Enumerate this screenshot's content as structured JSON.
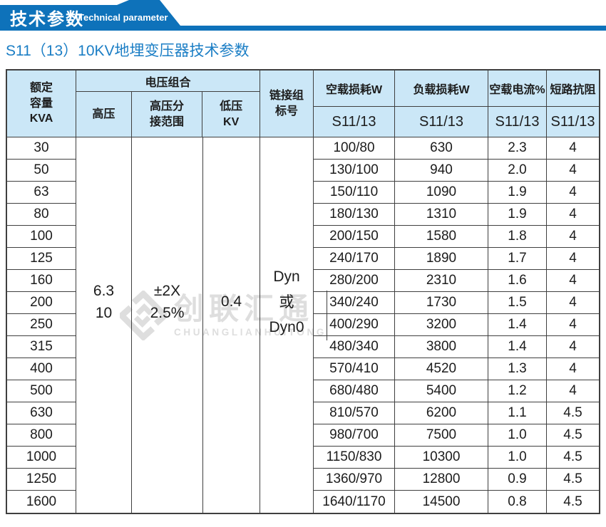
{
  "banner": {
    "title": "技术参数",
    "subtitle": "Technical parameter",
    "ribbon_color": "#0e72ba"
  },
  "page_title": "S11（13）10KV地埋变压器技术参数",
  "page_title_color": "#1b7ec5",
  "watermark": {
    "cn": "创联汇通",
    "en": "CHUANGLIANHUITONG",
    "color": "#dedede"
  },
  "table": {
    "header_bg_color": "#cbe7f7",
    "border_color": "#3f3f3f",
    "header": {
      "rated_capacity": "额定\n容量\nKVA",
      "voltage_combination": "电压组合",
      "hv": "高压",
      "hv_tap_range": "高压分\n接范围",
      "lv": "低压\nKV",
      "link_group": "链接组\n标号",
      "no_load_loss": "空载损耗W",
      "load_loss": "负载损耗W",
      "no_load_current": "空载电流%",
      "short_circuit_impedance": "短路抗阻",
      "model": "S11/13"
    },
    "merged": {
      "hv": "6.3\n10",
      "hv_tap": "±2X\n2.5%",
      "lv": "0.4",
      "link_group": "Dyn\n或\nDyn0"
    },
    "rows": [
      {
        "kva": "30",
        "no_load_loss": "100/80",
        "load_loss": "630",
        "current": "2.3",
        "impedance": "4"
      },
      {
        "kva": "50",
        "no_load_loss": "130/100",
        "load_loss": "940",
        "current": "2.0",
        "impedance": "4"
      },
      {
        "kva": "63",
        "no_load_loss": "150/110",
        "load_loss": "1090",
        "current": "1.9",
        "impedance": "4"
      },
      {
        "kva": "80",
        "no_load_loss": "180/130",
        "load_loss": "1310",
        "current": "1.9",
        "impedance": "4"
      },
      {
        "kva": "100",
        "no_load_loss": "200/150",
        "load_loss": "1580",
        "current": "1.8",
        "impedance": "4"
      },
      {
        "kva": "125",
        "no_load_loss": "240/170",
        "load_loss": "1890",
        "current": "1.7",
        "impedance": "4"
      },
      {
        "kva": "160",
        "no_load_loss": "280/200",
        "load_loss": "2310",
        "current": "1.6",
        "impedance": "4"
      },
      {
        "kva": "200",
        "no_load_loss": "340/240",
        "load_loss": "1730",
        "current": "1.5",
        "impedance": "4"
      },
      {
        "kva": "250",
        "no_load_loss": "400/290",
        "load_loss": "3200",
        "current": "1.4",
        "impedance": "4"
      },
      {
        "kva": "315",
        "no_load_loss": "480/340",
        "load_loss": "3800",
        "current": "1.4",
        "impedance": "4"
      },
      {
        "kva": "400",
        "no_load_loss": "570/410",
        "load_loss": "4520",
        "current": "1.3",
        "impedance": "4"
      },
      {
        "kva": "500",
        "no_load_loss": "680/480",
        "load_loss": "5400",
        "current": "1.2",
        "impedance": "4"
      },
      {
        "kva": "630",
        "no_load_loss": "810/570",
        "load_loss": "6200",
        "current": "1.1",
        "impedance": "4.5"
      },
      {
        "kva": "800",
        "no_load_loss": "980/700",
        "load_loss": "7500",
        "current": "1.0",
        "impedance": "4.5"
      },
      {
        "kva": "1000",
        "no_load_loss": "1150/830",
        "load_loss": "10300",
        "current": "1.0",
        "impedance": "4.5"
      },
      {
        "kva": "1250",
        "no_load_loss": "1360/970",
        "load_loss": "12800",
        "current": "0.9",
        "impedance": "4.5"
      },
      {
        "kva": "1600",
        "no_load_loss": "1640/1170",
        "load_loss": "14500",
        "current": "0.8",
        "impedance": "4.5"
      }
    ]
  }
}
